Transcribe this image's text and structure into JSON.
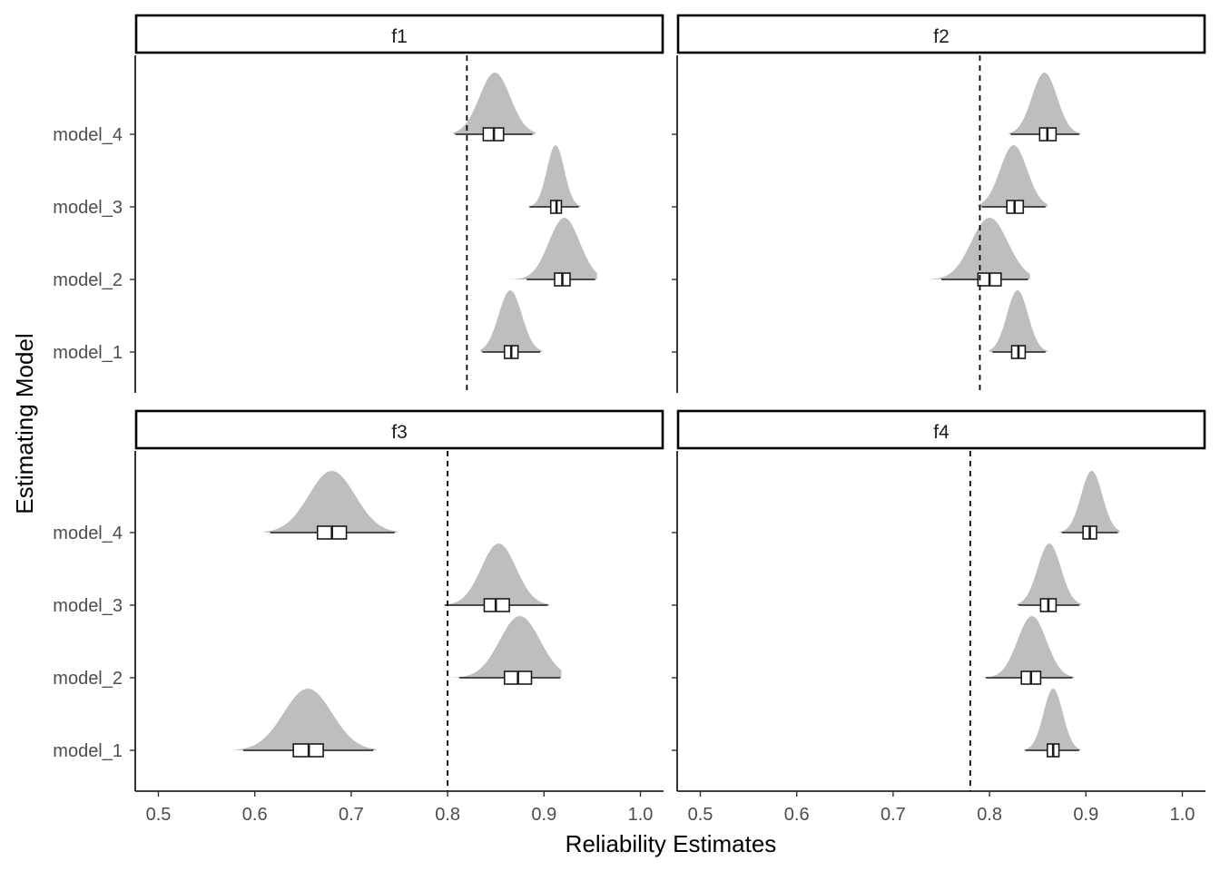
{
  "chart_data": {
    "type": "halfeye-faceted",
    "xlabel": "Reliability Estimates",
    "ylabel": "Estimating Model",
    "xlim": [
      0.476,
      1.024
    ],
    "xticks": [
      0.5,
      0.6,
      0.7,
      0.8,
      0.9,
      1.0
    ],
    "xtick_labels": [
      "0.5",
      "0.6",
      "0.7",
      "0.8",
      "0.9",
      "1.0"
    ],
    "categories": [
      "model_1",
      "model_2",
      "model_3",
      "model_4"
    ],
    "colors": {
      "density": "#bebebe",
      "box_fill": "#ffffff",
      "line": "#1a1a1a",
      "reference": "#000000"
    },
    "facets": [
      {
        "name": "f1",
        "reference": 0.82,
        "series": [
          {
            "model": "model_1",
            "median": 0.866,
            "q1": 0.859,
            "q3": 0.873,
            "lo": 0.836,
            "hi": 0.896,
            "dmin": 0.834,
            "dmax": 0.898,
            "peak": 0.865,
            "sd": 0.012
          },
          {
            "model": "model_2",
            "median": 0.919,
            "q1": 0.911,
            "q3": 0.927,
            "lo": 0.882,
            "hi": 0.953,
            "dmin": 0.848,
            "dmax": 0.955,
            "peak": 0.921,
            "sd": 0.016
          },
          {
            "model": "model_3",
            "median": 0.913,
            "q1": 0.907,
            "q3": 0.918,
            "lo": 0.885,
            "hi": 0.936,
            "dmin": 0.883,
            "dmax": 0.938,
            "peak": 0.912,
            "sd": 0.009
          },
          {
            "model": "model_4",
            "median": 0.848,
            "q1": 0.837,
            "q3": 0.858,
            "lo": 0.808,
            "hi": 0.888,
            "dmin": 0.806,
            "dmax": 0.891,
            "peak": 0.849,
            "sd": 0.016
          }
        ]
      },
      {
        "name": "f2",
        "reference": 0.79,
        "series": [
          {
            "model": "model_1",
            "median": 0.83,
            "q1": 0.823,
            "q3": 0.837,
            "lo": 0.803,
            "hi": 0.858,
            "dmin": 0.8,
            "dmax": 0.86,
            "peak": 0.829,
            "sd": 0.011
          },
          {
            "model": "model_2",
            "median": 0.8,
            "q1": 0.788,
            "q3": 0.812,
            "lo": 0.75,
            "hi": 0.84,
            "dmin": 0.74,
            "dmax": 0.842,
            "peak": 0.8,
            "sd": 0.019
          },
          {
            "model": "model_3",
            "median": 0.826,
            "q1": 0.818,
            "q3": 0.835,
            "lo": 0.792,
            "hi": 0.858,
            "dmin": 0.788,
            "dmax": 0.86,
            "peak": 0.825,
            "sd": 0.014
          },
          {
            "model": "model_4",
            "median": 0.86,
            "q1": 0.852,
            "q3": 0.869,
            "lo": 0.822,
            "hi": 0.893,
            "dmin": 0.82,
            "dmax": 0.895,
            "peak": 0.857,
            "sd": 0.013
          }
        ]
      },
      {
        "name": "f3",
        "reference": 0.8,
        "series": [
          {
            "model": "model_1",
            "median": 0.656,
            "q1": 0.64,
            "q3": 0.671,
            "lo": 0.588,
            "hi": 0.723,
            "dmin": 0.58,
            "dmax": 0.726,
            "peak": 0.655,
            "sd": 0.025
          },
          {
            "model": "model_2",
            "median": 0.873,
            "q1": 0.859,
            "q3": 0.887,
            "lo": 0.812,
            "hi": 0.917,
            "dmin": 0.8,
            "dmax": 0.918,
            "peak": 0.875,
            "sd": 0.021
          },
          {
            "model": "model_3",
            "median": 0.85,
            "q1": 0.838,
            "q3": 0.864,
            "lo": 0.797,
            "hi": 0.904,
            "dmin": 0.795,
            "dmax": 0.906,
            "peak": 0.853,
            "sd": 0.018
          },
          {
            "model": "model_4",
            "median": 0.68,
            "q1": 0.665,
            "q3": 0.695,
            "lo": 0.616,
            "hi": 0.745,
            "dmin": 0.61,
            "dmax": 0.748,
            "peak": 0.68,
            "sd": 0.024
          }
        ]
      },
      {
        "name": "f4",
        "reference": 0.78,
        "series": [
          {
            "model": "model_1",
            "median": 0.866,
            "q1": 0.86,
            "q3": 0.872,
            "lo": 0.837,
            "hi": 0.893,
            "dmin": 0.835,
            "dmax": 0.895,
            "peak": 0.866,
            "sd": 0.01
          },
          {
            "model": "model_2",
            "median": 0.843,
            "q1": 0.833,
            "q3": 0.853,
            "lo": 0.796,
            "hi": 0.886,
            "dmin": 0.79,
            "dmax": 0.888,
            "peak": 0.844,
            "sd": 0.015
          },
          {
            "model": "model_3",
            "median": 0.861,
            "q1": 0.853,
            "q3": 0.869,
            "lo": 0.83,
            "hi": 0.893,
            "dmin": 0.828,
            "dmax": 0.895,
            "peak": 0.862,
            "sd": 0.012
          },
          {
            "model": "model_4",
            "median": 0.904,
            "q1": 0.897,
            "q3": 0.911,
            "lo": 0.875,
            "hi": 0.933,
            "dmin": 0.872,
            "dmax": 0.935,
            "peak": 0.906,
            "sd": 0.011
          }
        ]
      }
    ]
  }
}
